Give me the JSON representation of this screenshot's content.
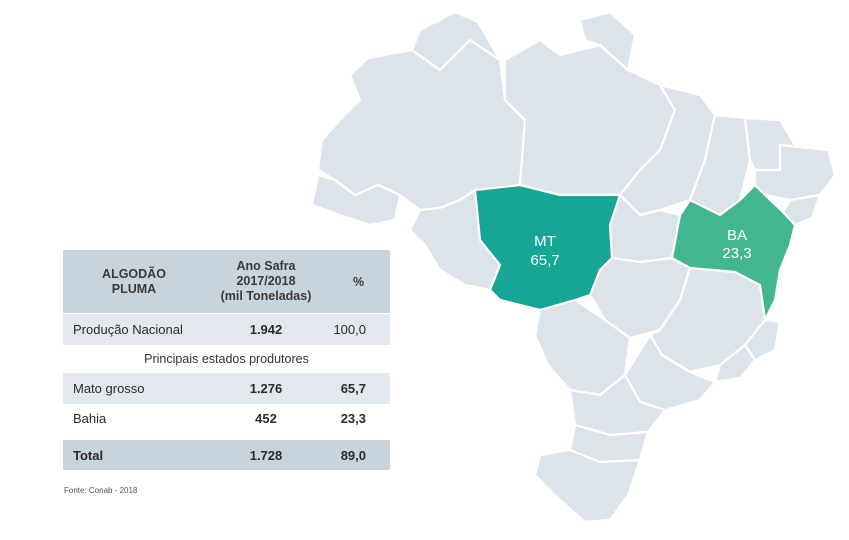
{
  "map": {
    "highlighted_states": [
      {
        "code": "MT",
        "value": "65,7",
        "color": "#17a595"
      },
      {
        "code": "BA",
        "value": "23,3",
        "color": "#43b690"
      }
    ],
    "base_state_color": "#dde3ea"
  },
  "table": {
    "header": {
      "col1_line1": "ALGODÃO",
      "col1_line2": "PLUMA",
      "col2_line1": "Ano Safra",
      "col2_line2": "2017/2018",
      "col2_line3": "(mil Toneladas)",
      "col3": "%"
    },
    "national": {
      "label": "Produção Nacional",
      "value": "1.942",
      "percent": "100,0"
    },
    "subheader": "Principais estados produtores",
    "rows": [
      {
        "label": "Mato grosso",
        "value": "1.276",
        "percent": "65,7"
      },
      {
        "label": "Bahia",
        "value": "452",
        "percent": "23,3"
      }
    ],
    "total": {
      "label": "Total",
      "value": "1.728",
      "percent": "89,0"
    }
  },
  "source": "Fonte: Conab - 2018"
}
